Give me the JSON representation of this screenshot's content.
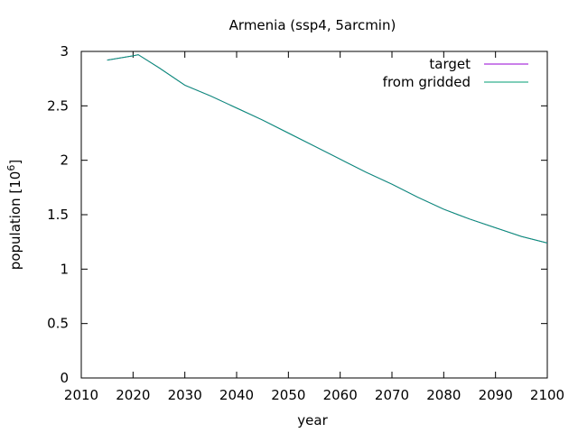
{
  "chart_data": {
    "type": "line",
    "title": "Armenia (ssp4, 5arcmin)",
    "xlabel": "year",
    "ylabel": "population [10",
    "ylabel_sup": "6",
    "ylabel_close": "]",
    "xlim": [
      2010,
      2100
    ],
    "ylim": [
      0,
      3
    ],
    "xticks": [
      2010,
      2020,
      2030,
      2040,
      2050,
      2060,
      2070,
      2080,
      2090,
      2100
    ],
    "yticks": [
      0,
      0.5,
      1,
      1.5,
      2,
      2.5,
      3
    ],
    "ytick_labels": [
      "0",
      "0.5",
      "1",
      "1.5",
      "2",
      "2.5",
      "3"
    ],
    "grid": false,
    "legend_position": "top-right",
    "series": [
      {
        "name": "target",
        "color": "#9400d3",
        "x": [
          2015,
          2020,
          2021,
          2025,
          2030,
          2035,
          2040,
          2045,
          2050,
          2055,
          2060,
          2065,
          2070,
          2075,
          2080,
          2085,
          2090,
          2095,
          2100
        ],
        "y": [
          2.92,
          2.96,
          2.97,
          2.85,
          2.69,
          2.59,
          2.48,
          2.37,
          2.25,
          2.13,
          2.01,
          1.89,
          1.78,
          1.66,
          1.55,
          1.46,
          1.38,
          1.3,
          1.24
        ]
      },
      {
        "name": "from gridded",
        "color": "#009e73",
        "x": [
          2015,
          2020,
          2021,
          2025,
          2030,
          2035,
          2040,
          2045,
          2050,
          2055,
          2060,
          2065,
          2070,
          2075,
          2080,
          2085,
          2090,
          2095,
          2100
        ],
        "y": [
          2.92,
          2.96,
          2.97,
          2.85,
          2.69,
          2.59,
          2.48,
          2.37,
          2.25,
          2.13,
          2.01,
          1.89,
          1.78,
          1.66,
          1.55,
          1.46,
          1.38,
          1.3,
          1.24
        ]
      }
    ]
  }
}
